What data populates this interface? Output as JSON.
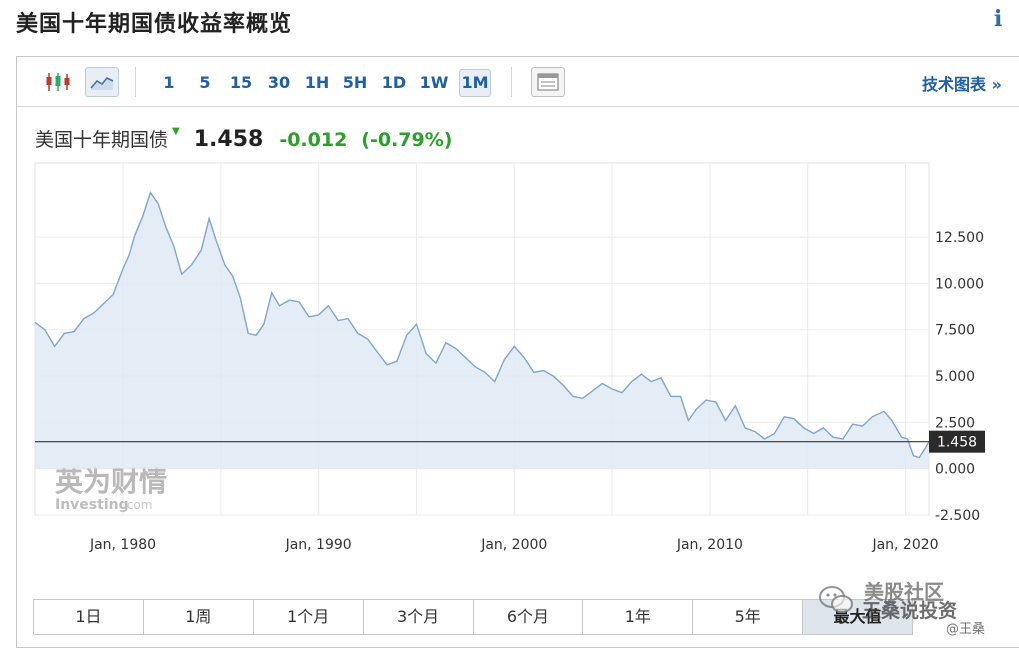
{
  "page": {
    "title": "美国十年期国债收益率概览",
    "info_icon": "info-icon"
  },
  "toolbar": {
    "candlestick_icon": "candlestick-icon",
    "line_chart_icon": "line-chart-icon",
    "table_icon": "table-icon",
    "intervals": [
      "1",
      "5",
      "15",
      "30",
      "1H",
      "5H",
      "1D",
      "1W",
      "1M"
    ],
    "active_interval": "1M",
    "tech_link": "技术图表 »"
  },
  "quote": {
    "name": "美国十年期国债",
    "direction_icon": "down-arrow-icon",
    "price": "1.458",
    "change": "-0.012",
    "change_pct": "(-0.79%)",
    "change_color": "#2ba02b"
  },
  "chart_data": {
    "type": "area",
    "x_unit": "year",
    "xlim": [
      1975.5,
      2021.2
    ],
    "ylim": [
      -2.5,
      16.5
    ],
    "x_ticks": [
      1980,
      1990,
      2000,
      2010,
      2020
    ],
    "x_tick_labels": [
      "Jan, 1980",
      "Jan, 1990",
      "Jan, 2000",
      "Jan, 2010",
      "Jan, 2020"
    ],
    "y_ticks": [
      12.5,
      10,
      7.5,
      5,
      2.5,
      0,
      -2.5
    ],
    "y_tick_labels": [
      "12.500",
      "10.000",
      "7.500",
      "5.000",
      "2.500",
      "0.000",
      "-2.500"
    ],
    "current_value": 1.458,
    "current_label": "1.458",
    "line_color": "#7fa6cc",
    "fill_color": "#dfe9f3",
    "grid": true,
    "watermark_cn": "英为财情",
    "watermark_en": "Investing",
    "watermark_en_suffix": ".com",
    "x": [
      1975.5,
      1976.0,
      1976.5,
      1977.0,
      1977.5,
      1978.0,
      1978.5,
      1979.0,
      1979.5,
      1980.0,
      1980.3,
      1980.6,
      1981.0,
      1981.4,
      1981.8,
      1982.2,
      1982.6,
      1983.0,
      1983.5,
      1984.0,
      1984.4,
      1984.8,
      1985.2,
      1985.6,
      1986.0,
      1986.4,
      1986.8,
      1987.2,
      1987.6,
      1988.0,
      1988.5,
      1989.0,
      1989.5,
      1990.0,
      1990.5,
      1991.0,
      1991.5,
      1992.0,
      1992.5,
      1993.0,
      1993.5,
      1994.0,
      1994.5,
      1995.0,
      1995.5,
      1996.0,
      1996.5,
      1997.0,
      1997.5,
      1998.0,
      1998.5,
      1999.0,
      1999.5,
      2000.0,
      2000.5,
      2001.0,
      2001.5,
      2002.0,
      2002.5,
      2003.0,
      2003.5,
      2004.0,
      2004.5,
      2005.0,
      2005.5,
      2006.0,
      2006.5,
      2007.0,
      2007.5,
      2008.0,
      2008.5,
      2008.9,
      2009.3,
      2009.8,
      2010.3,
      2010.8,
      2011.3,
      2011.8,
      2012.3,
      2012.8,
      2013.3,
      2013.8,
      2014.3,
      2014.8,
      2015.3,
      2015.8,
      2016.3,
      2016.8,
      2017.3,
      2017.8,
      2018.3,
      2018.9,
      2019.3,
      2019.8,
      2020.1,
      2020.4,
      2020.7,
      2021.0,
      2021.2
    ],
    "values": [
      7.9,
      7.5,
      6.6,
      7.3,
      7.4,
      8.1,
      8.4,
      8.9,
      9.4,
      10.8,
      11.5,
      12.6,
      13.6,
      14.9,
      14.3,
      13.0,
      12.0,
      10.5,
      11.0,
      11.8,
      13.5,
      12.2,
      11.0,
      10.4,
      9.2,
      7.3,
      7.2,
      7.8,
      9.5,
      8.8,
      9.1,
      9.0,
      8.2,
      8.3,
      8.8,
      8.0,
      8.1,
      7.3,
      7.0,
      6.3,
      5.6,
      5.8,
      7.2,
      7.8,
      6.2,
      5.7,
      6.8,
      6.5,
      6.0,
      5.5,
      5.2,
      4.7,
      5.9,
      6.6,
      6.0,
      5.2,
      5.3,
      5.0,
      4.5,
      3.9,
      3.8,
      4.2,
      4.6,
      4.3,
      4.1,
      4.7,
      5.1,
      4.7,
      4.9,
      3.9,
      3.9,
      2.6,
      3.2,
      3.7,
      3.6,
      2.6,
      3.4,
      2.2,
      2.0,
      1.6,
      1.9,
      2.8,
      2.7,
      2.2,
      1.9,
      2.2,
      1.7,
      1.6,
      2.4,
      2.3,
      2.8,
      3.1,
      2.6,
      1.7,
      1.6,
      0.7,
      0.6,
      1.1,
      1.458
    ]
  },
  "periods": {
    "items": [
      "1日",
      "1周",
      "1个月",
      "3个月",
      "6个月",
      "1年",
      "5年",
      "最大值"
    ],
    "active": "最大值"
  },
  "watermark": {
    "icon": "wechat-icon",
    "line1": "美股社区",
    "line2": "王桑说投资",
    "line3": "@王桑"
  }
}
